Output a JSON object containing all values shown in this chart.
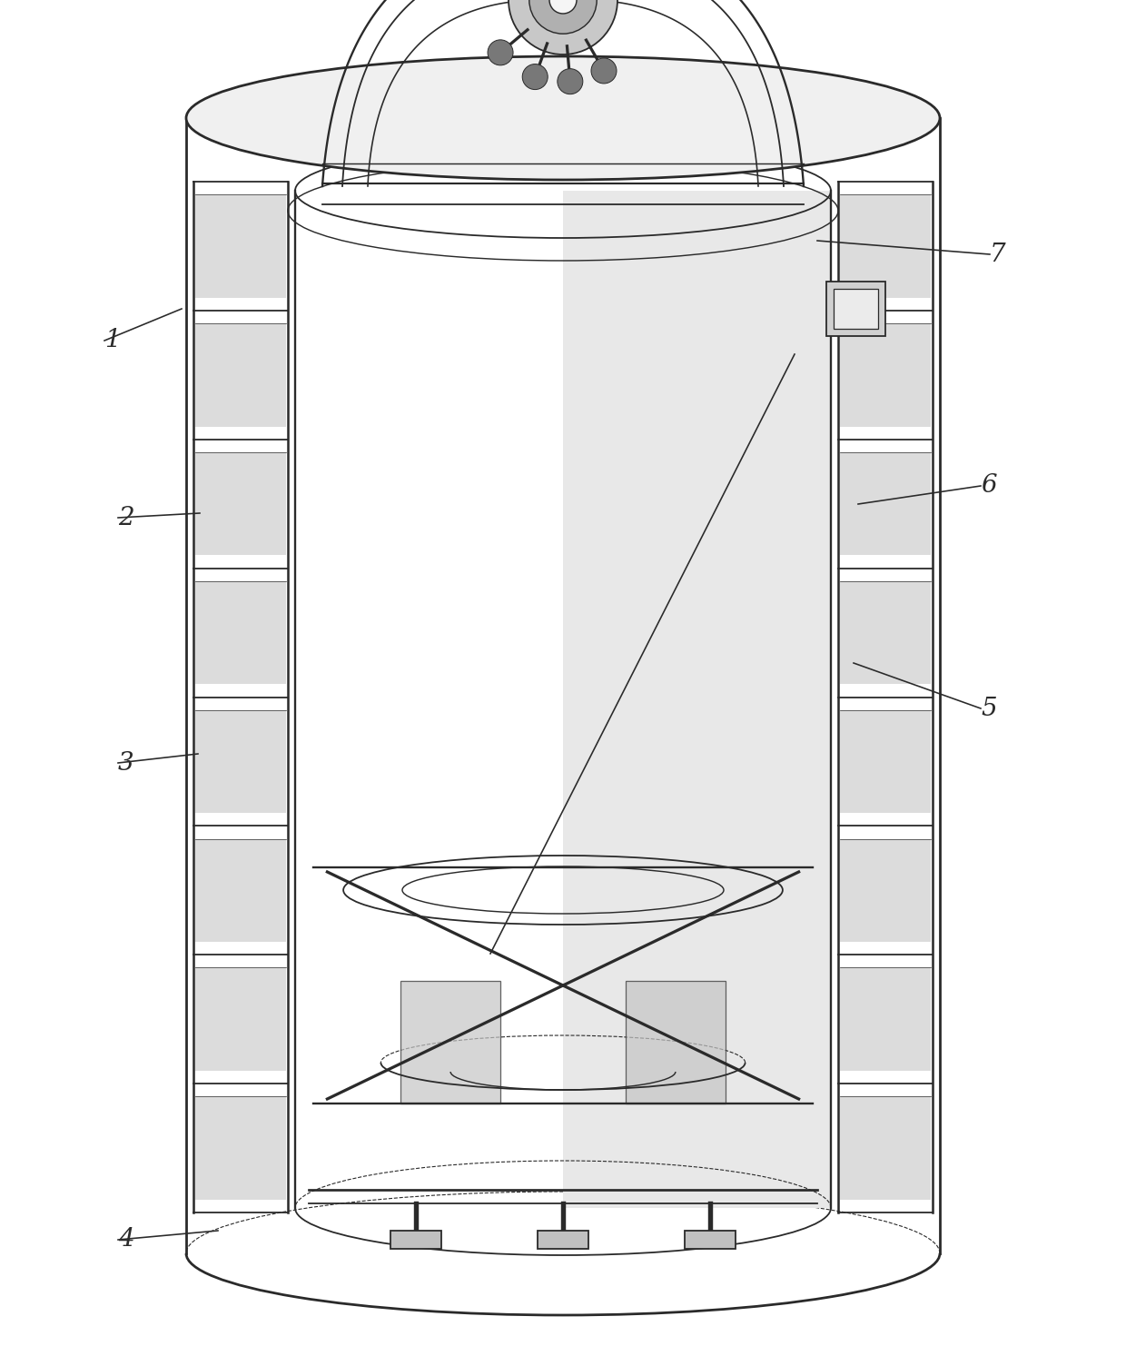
{
  "bg_color": "#ffffff",
  "line_color": "#2a2a2a",
  "figsize": [
    12.4,
    14.82
  ],
  "dpi": 100,
  "label_fontsize": 20,
  "lw_heavy": 2.0,
  "lw_med": 1.3,
  "lw_light": 0.8
}
